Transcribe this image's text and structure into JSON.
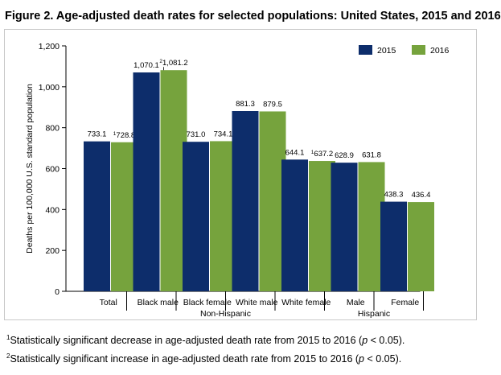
{
  "figure": {
    "title": "Figure 2. Age-adjusted death rates for selected populations: United States, 2015 and 2016"
  },
  "chart_data": {
    "type": "bar",
    "ylabel": "Deaths per 100,000 U.S. standard population",
    "ylim": [
      0,
      1200
    ],
    "yticks": [
      0,
      200,
      400,
      600,
      800,
      1000,
      1200
    ],
    "ytick_labels": [
      "0",
      "200",
      "400",
      "600",
      "800",
      "1,000",
      "1,200"
    ],
    "grid": false,
    "legend_position": "top-right",
    "categories": [
      "Total",
      "Black male",
      "Black female",
      "White male",
      "White female",
      "Male",
      "Female"
    ],
    "groups": [
      {
        "label": "Non-Hispanic",
        "categories": [
          "Black male",
          "Black female",
          "White male",
          "White female"
        ]
      },
      {
        "label": "Hispanic",
        "categories": [
          "Male",
          "Female"
        ]
      }
    ],
    "series": [
      {
        "name": "2015",
        "color": "#0d2d6b",
        "values": [
          733.1,
          1070.1,
          731.0,
          881.3,
          644.1,
          628.9,
          438.3
        ],
        "labels": [
          "733.1",
          "1,070.1",
          "731.0",
          "881.3",
          "644.1",
          "628.9",
          "438.3"
        ],
        "markers": [
          "",
          "",
          "",
          "",
          "",
          "",
          ""
        ]
      },
      {
        "name": "2016",
        "color": "#76a33d",
        "values": [
          728.8,
          1081.2,
          734.1,
          879.5,
          637.2,
          631.8,
          436.4
        ],
        "labels": [
          "728.8",
          "1,081.2",
          "734.1",
          "879.5",
          "637.2",
          "631.8",
          "436.4"
        ],
        "markers": [
          "1",
          "2",
          "",
          "",
          "1",
          "",
          ""
        ]
      }
    ]
  },
  "footnotes": {
    "note1": {
      "marker": "1",
      "text_before": "Statistically significant decrease in age-adjusted death rate from 2015 to 2016 (",
      "p": "p",
      "text_after": " < 0.05)."
    },
    "note2": {
      "marker": "2",
      "text_before": "Statistically significant increase in age-adjusted death rate from 2015 to 2016 (",
      "p": "p",
      "text_after": " < 0.05)."
    }
  }
}
